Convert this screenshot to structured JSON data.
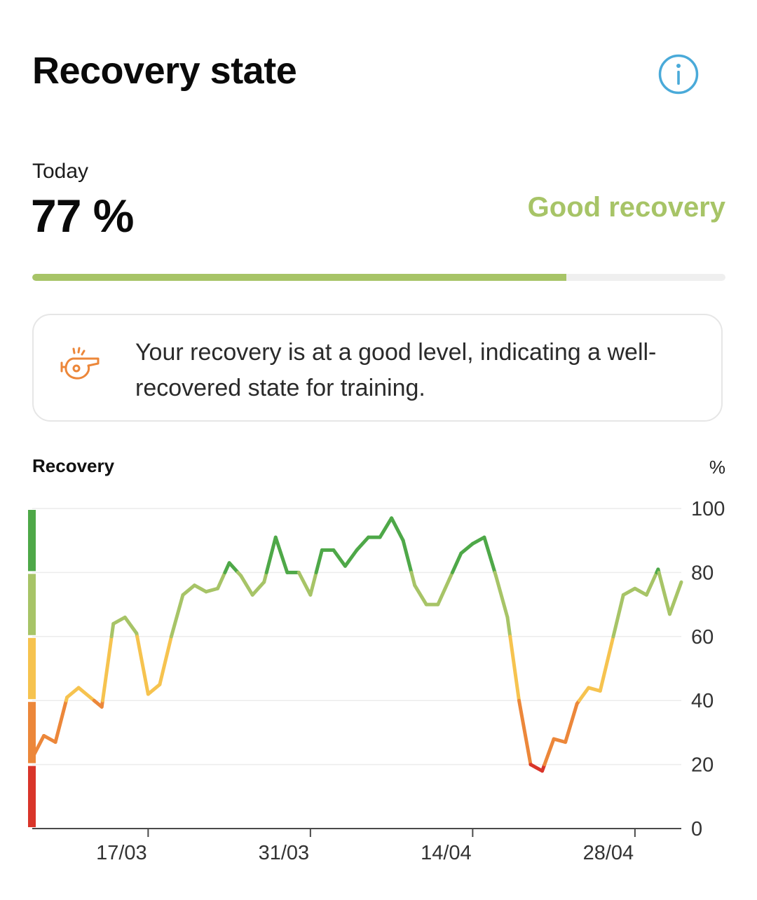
{
  "header": {
    "title": "Recovery state",
    "info_icon": "info-icon"
  },
  "today": {
    "label": "Today",
    "value_text": "77 %",
    "value": 77,
    "status": "Good recovery",
    "status_color": "#a7c467"
  },
  "note": {
    "icon": "whistle-icon",
    "text": "Your recovery is at a good level, indicating a well-recovered state for training."
  },
  "chart_header": {
    "label": "Recovery",
    "unit": "%"
  },
  "colors": {
    "red": "#d9352a",
    "orange": "#ec873a",
    "yellow": "#f6c34f",
    "lightgreen": "#a7c467",
    "green": "#4ea848"
  },
  "chart_data": {
    "type": "line",
    "x_tick_labels": [
      "17/03",
      "31/03",
      "14/04",
      "28/04"
    ],
    "y_ticks": [
      "0",
      "20",
      "40",
      "60",
      "80",
      "100"
    ],
    "ylim": [
      0,
      100
    ],
    "grid": true,
    "zones": [
      {
        "from": 0,
        "to": 20,
        "color": "#d9352a"
      },
      {
        "from": 20,
        "to": 40,
        "color": "#ec873a"
      },
      {
        "from": 40,
        "to": 60,
        "color": "#f6c34f"
      },
      {
        "from": 60,
        "to": 80,
        "color": "#a7c467"
      },
      {
        "from": 80,
        "to": 100,
        "color": "#4ea848"
      }
    ],
    "series": [
      {
        "values": [
          22,
          29,
          27,
          41,
          44,
          41,
          38,
          64,
          66,
          61,
          42,
          45,
          60,
          73,
          76,
          74,
          75,
          83,
          79,
          73,
          77,
          91,
          80,
          80,
          73,
          87,
          87,
          82,
          87,
          91,
          91,
          97,
          90,
          76,
          70,
          70,
          78,
          86,
          89,
          91,
          79,
          66,
          40,
          20,
          18,
          28,
          27,
          39,
          44,
          43,
          58,
          73,
          75,
          73,
          81,
          67,
          77
        ]
      }
    ]
  }
}
